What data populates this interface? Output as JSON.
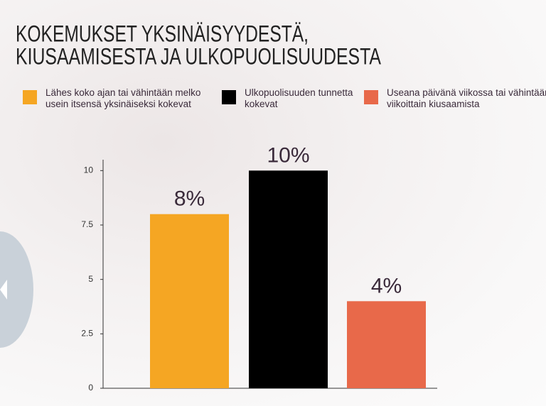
{
  "chart_data": {
    "type": "bar",
    "title_lines": [
      "KOKEMUKSET YKSINÄISYYDESTÄ,",
      "KIUSAAMISESTA JA ULKOPUOLISUUDESTA"
    ],
    "series": [
      {
        "name": "Lähes koko ajan tai vähintään melko usein itsensä yksinäiseksi kokevat",
        "color": "#f5a623",
        "values": [
          8
        ],
        "value_labels": [
          "8%"
        ]
      },
      {
        "name": "Ulkopuolisuuden tunnetta kokevat",
        "color": "#000000",
        "values": [
          10
        ],
        "value_labels": [
          "10%"
        ]
      },
      {
        "name": "Useana päivänä viikossa tai vähintään viikoittain kiusaamista",
        "color": "#e8694a",
        "values": [
          4
        ],
        "value_labels": [
          "4%"
        ]
      }
    ],
    "ylim": [
      0,
      10.5
    ],
    "yticks": [
      0,
      2.5,
      5,
      7.5,
      10
    ]
  }
}
